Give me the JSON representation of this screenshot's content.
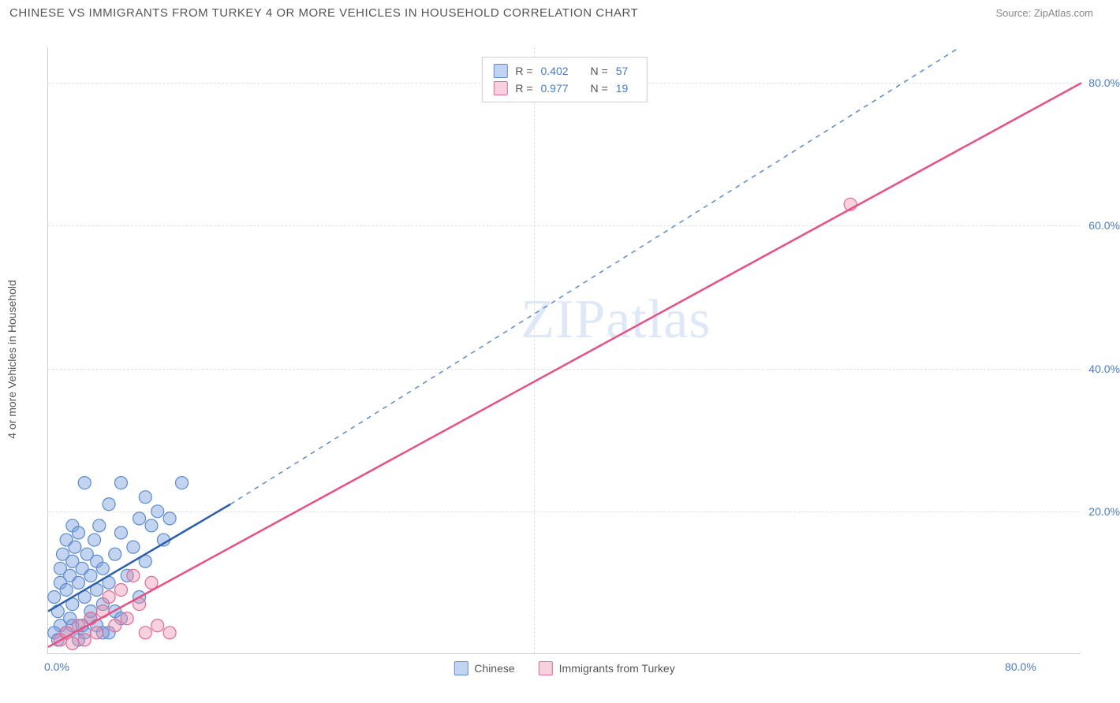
{
  "header": {
    "title": "CHINESE VS IMMIGRANTS FROM TURKEY 4 OR MORE VEHICLES IN HOUSEHOLD CORRELATION CHART",
    "source": "Source: ZipAtlas.com"
  },
  "chart": {
    "type": "scatter",
    "watermark": "ZIPatlas",
    "y_axis_title": "4 or more Vehicles in Household",
    "xlim": [
      0,
      85
    ],
    "ylim": [
      0,
      85
    ],
    "x_ticks": [
      {
        "v": 0,
        "label": "0.0%"
      },
      {
        "v": 80,
        "label": "80.0%"
      }
    ],
    "y_ticks": [
      {
        "v": 20,
        "label": "20.0%"
      },
      {
        "v": 40,
        "label": "40.0%"
      },
      {
        "v": 60,
        "label": "60.0%"
      },
      {
        "v": 80,
        "label": "80.0%"
      }
    ],
    "x_grid_at": [
      40
    ],
    "background_color": "#ffffff",
    "grid_color": "#e0e0e0",
    "axis_label_color": "#4a7bc8",
    "series": [
      {
        "key": "chinese",
        "label": "Chinese",
        "fill": "rgba(120,160,220,0.45)",
        "stroke": "#5a8bd0",
        "line_color": "#2b5fb0",
        "dash_color": "#5a8bd0",
        "R": "0.402",
        "N": "57",
        "marker_r": 8,
        "trend_solid": {
          "x1": 0,
          "y1": 6,
          "x2": 15,
          "y2": 21
        },
        "trend_dash": {
          "x1": 15,
          "y1": 21,
          "x2": 75,
          "y2": 85
        },
        "points": [
          [
            0.5,
            8
          ],
          [
            0.8,
            6
          ],
          [
            1,
            10
          ],
          [
            1,
            12
          ],
          [
            1.2,
            14
          ],
          [
            1.5,
            16
          ],
          [
            1.5,
            9
          ],
          [
            1.8,
            11
          ],
          [
            2,
            18
          ],
          [
            2,
            13
          ],
          [
            2,
            7
          ],
          [
            2.2,
            15
          ],
          [
            2.5,
            10
          ],
          [
            2.5,
            17
          ],
          [
            2.8,
            12
          ],
          [
            3,
            24
          ],
          [
            3,
            8
          ],
          [
            3.2,
            14
          ],
          [
            3.5,
            11
          ],
          [
            3.5,
            5
          ],
          [
            3.8,
            16
          ],
          [
            4,
            9
          ],
          [
            4,
            13
          ],
          [
            4.2,
            18
          ],
          [
            4.5,
            7
          ],
          [
            4.5,
            12
          ],
          [
            5,
            21
          ],
          [
            5,
            10
          ],
          [
            5.5,
            14
          ],
          [
            5.5,
            6
          ],
          [
            6,
            17
          ],
          [
            6,
            24
          ],
          [
            6.5,
            11
          ],
          [
            7,
            15
          ],
          [
            7.5,
            19
          ],
          [
            7.5,
            8
          ],
          [
            8,
            22
          ],
          [
            8,
            13
          ],
          [
            8.5,
            18
          ],
          [
            9,
            20
          ],
          [
            9.5,
            16
          ],
          [
            10,
            19
          ],
          [
            11,
            24
          ],
          [
            2,
            4
          ],
          [
            3,
            3
          ],
          [
            1,
            4
          ],
          [
            0.5,
            3
          ],
          [
            1.8,
            5
          ],
          [
            4,
            4
          ],
          [
            5,
            3
          ],
          [
            6,
            5
          ],
          [
            2.5,
            2
          ],
          [
            3.5,
            6
          ],
          [
            0.8,
            2
          ],
          [
            1.5,
            3
          ],
          [
            2.8,
            4
          ],
          [
            4.5,
            3
          ]
        ]
      },
      {
        "key": "turkey",
        "label": "Immigrants from Turkey",
        "fill": "rgba(235,140,170,0.40)",
        "stroke": "#e06a95",
        "line_color": "#e84f83",
        "R": "0.977",
        "N": "19",
        "marker_r": 8,
        "trend_solid": {
          "x1": 0,
          "y1": 1,
          "x2": 85,
          "y2": 80
        },
        "points": [
          [
            1,
            2
          ],
          [
            1.5,
            3
          ],
          [
            2,
            1.5
          ],
          [
            2.5,
            4
          ],
          [
            3,
            2
          ],
          [
            3.5,
            5
          ],
          [
            4,
            3
          ],
          [
            4.5,
            6
          ],
          [
            5,
            8
          ],
          [
            5.5,
            4
          ],
          [
            6,
            9
          ],
          [
            6.5,
            5
          ],
          [
            7,
            11
          ],
          [
            7.5,
            7
          ],
          [
            8,
            3
          ],
          [
            8.5,
            10
          ],
          [
            9,
            4
          ],
          [
            10,
            3
          ],
          [
            66,
            63
          ]
        ]
      }
    ]
  }
}
